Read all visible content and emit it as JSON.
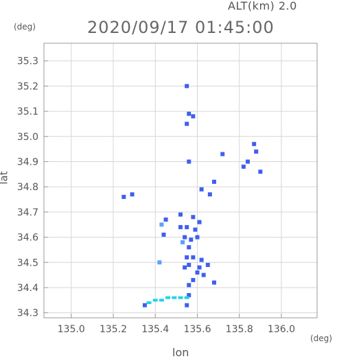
{
  "header": {
    "alt_label": "ALT(km) 2.0",
    "title": "2020/09/17 01:45:00"
  },
  "axes": {
    "y_unit": "(deg)",
    "x_unit": "(deg)",
    "y_label": "lat",
    "x_label": "lon",
    "x_ticks": [
      "135.0",
      "135.2",
      "135.4",
      "135.6",
      "135.8",
      "136.0"
    ],
    "y_ticks": [
      "34.3",
      "34.4",
      "34.5",
      "34.6",
      "34.7",
      "34.8",
      "34.9",
      "35.0",
      "35.1",
      "35.2",
      "35.3"
    ]
  },
  "colors": {
    "echo_main": "#3f5ff0",
    "echo_light": "#5aa0ff",
    "echo_cyan": "#22d3e6",
    "grid": "#d6d6d6",
    "axis": "#9a9a9a"
  },
  "chart_data": {
    "type": "scatter",
    "xlabel": "lon",
    "ylabel": "lat",
    "xlim": [
      134.87,
      136.17
    ],
    "ylim": [
      34.28,
      35.37
    ],
    "grid": true,
    "points": [
      {
        "lon": 135.55,
        "lat": 35.2,
        "kind": "main"
      },
      {
        "lon": 135.56,
        "lat": 35.09,
        "kind": "main"
      },
      {
        "lon": 135.55,
        "lat": 35.05,
        "kind": "main"
      },
      {
        "lon": 135.58,
        "lat": 35.08,
        "kind": "main"
      },
      {
        "lon": 135.87,
        "lat": 34.97,
        "kind": "main"
      },
      {
        "lon": 135.88,
        "lat": 34.94,
        "kind": "main"
      },
      {
        "lon": 135.72,
        "lat": 34.93,
        "kind": "main"
      },
      {
        "lon": 135.82,
        "lat": 34.88,
        "kind": "main"
      },
      {
        "lon": 135.84,
        "lat": 34.9,
        "kind": "main"
      },
      {
        "lon": 135.9,
        "lat": 34.86,
        "kind": "main"
      },
      {
        "lon": 135.56,
        "lat": 34.9,
        "kind": "main"
      },
      {
        "lon": 135.68,
        "lat": 34.82,
        "kind": "main"
      },
      {
        "lon": 135.62,
        "lat": 34.79,
        "kind": "main"
      },
      {
        "lon": 135.66,
        "lat": 34.77,
        "kind": "main"
      },
      {
        "lon": 135.29,
        "lat": 34.77,
        "kind": "main"
      },
      {
        "lon": 135.25,
        "lat": 34.76,
        "kind": "main"
      },
      {
        "lon": 135.52,
        "lat": 34.69,
        "kind": "main"
      },
      {
        "lon": 135.58,
        "lat": 34.68,
        "kind": "main"
      },
      {
        "lon": 135.61,
        "lat": 34.66,
        "kind": "main"
      },
      {
        "lon": 135.52,
        "lat": 34.64,
        "kind": "main"
      },
      {
        "lon": 135.55,
        "lat": 34.64,
        "kind": "main"
      },
      {
        "lon": 135.59,
        "lat": 34.63,
        "kind": "main"
      },
      {
        "lon": 135.43,
        "lat": 34.65,
        "kind": "light"
      },
      {
        "lon": 135.45,
        "lat": 34.67,
        "kind": "main"
      },
      {
        "lon": 135.54,
        "lat": 34.6,
        "kind": "main"
      },
      {
        "lon": 135.57,
        "lat": 34.59,
        "kind": "main"
      },
      {
        "lon": 135.6,
        "lat": 34.6,
        "kind": "main"
      },
      {
        "lon": 135.56,
        "lat": 34.56,
        "kind": "main"
      },
      {
        "lon": 135.53,
        "lat": 34.58,
        "kind": "light"
      },
      {
        "lon": 135.44,
        "lat": 34.61,
        "kind": "main"
      },
      {
        "lon": 135.55,
        "lat": 34.52,
        "kind": "main"
      },
      {
        "lon": 135.58,
        "lat": 34.52,
        "kind": "main"
      },
      {
        "lon": 135.62,
        "lat": 34.51,
        "kind": "main"
      },
      {
        "lon": 135.56,
        "lat": 34.49,
        "kind": "main"
      },
      {
        "lon": 135.54,
        "lat": 34.48,
        "kind": "main"
      },
      {
        "lon": 135.61,
        "lat": 34.48,
        "kind": "main"
      },
      {
        "lon": 135.65,
        "lat": 34.49,
        "kind": "main"
      },
      {
        "lon": 135.42,
        "lat": 34.5,
        "kind": "light"
      },
      {
        "lon": 135.6,
        "lat": 34.46,
        "kind": "main"
      },
      {
        "lon": 135.63,
        "lat": 34.45,
        "kind": "main"
      },
      {
        "lon": 135.58,
        "lat": 34.43,
        "kind": "main"
      },
      {
        "lon": 135.68,
        "lat": 34.42,
        "kind": "main"
      },
      {
        "lon": 135.56,
        "lat": 34.41,
        "kind": "main"
      },
      {
        "lon": 135.56,
        "lat": 34.37,
        "kind": "main"
      },
      {
        "lon": 135.4,
        "lat": 34.35,
        "kind": "cyan"
      },
      {
        "lon": 135.43,
        "lat": 34.35,
        "kind": "cyan"
      },
      {
        "lon": 135.46,
        "lat": 34.36,
        "kind": "cyan"
      },
      {
        "lon": 135.49,
        "lat": 34.36,
        "kind": "cyan"
      },
      {
        "lon": 135.52,
        "lat": 34.36,
        "kind": "cyan"
      },
      {
        "lon": 135.55,
        "lat": 34.36,
        "kind": "cyan"
      },
      {
        "lon": 135.37,
        "lat": 34.34,
        "kind": "cyan"
      },
      {
        "lon": 135.35,
        "lat": 34.33,
        "kind": "main"
      },
      {
        "lon": 135.55,
        "lat": 34.33,
        "kind": "main"
      }
    ]
  }
}
